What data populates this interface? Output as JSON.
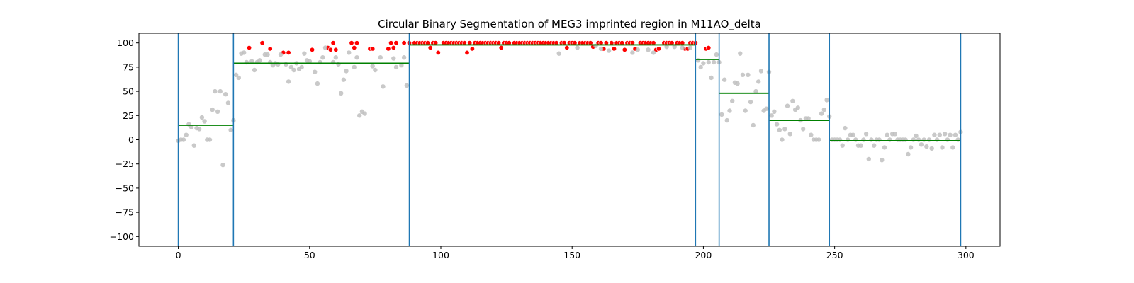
{
  "chart_data": {
    "type": "scatter",
    "title": "Circular Binary Segmentation of MEG3 imprinted region in M11AO_delta",
    "xlabel": "",
    "ylabel": "",
    "xlim": [
      -15,
      313
    ],
    "ylim": [
      -110,
      110
    ],
    "x_ticks": [
      0,
      50,
      100,
      150,
      200,
      250,
      300
    ],
    "y_ticks": [
      100,
      75,
      50,
      25,
      0,
      -25,
      -50,
      -75,
      -100
    ],
    "grid": false,
    "legend": "none",
    "colors": {
      "point": "#c0c0c0",
      "highlight": "#ff0000",
      "segment": "#008000",
      "breakpoint": "#1f77b4"
    },
    "breakpoints": [
      0,
      21,
      88,
      197,
      206,
      225,
      248,
      298
    ],
    "segments": [
      {
        "x_start": 0,
        "x_end": 21,
        "mean": 15
      },
      {
        "x_start": 21,
        "x_end": 88,
        "mean": 79
      },
      {
        "x_start": 88,
        "x_end": 197,
        "mean": 98
      },
      {
        "x_start": 197,
        "x_end": 206,
        "mean": 83
      },
      {
        "x_start": 206,
        "x_end": 225,
        "mean": 48
      },
      {
        "x_start": 225,
        "x_end": 248,
        "mean": 20
      },
      {
        "x_start": 248,
        "x_end": 298,
        "mean": -1
      }
    ],
    "series": [
      {
        "name": "",
        "points": [
          [
            0,
            -1
          ],
          [
            1,
            0
          ],
          [
            2,
            0
          ],
          [
            3,
            5
          ],
          [
            4,
            16
          ],
          [
            5,
            13
          ],
          [
            6,
            -6
          ],
          [
            7,
            12
          ],
          [
            8,
            11
          ],
          [
            9,
            23
          ],
          [
            10,
            19
          ],
          [
            11,
            0
          ],
          [
            12,
            0
          ],
          [
            13,
            31
          ],
          [
            14,
            50
          ],
          [
            15,
            29
          ],
          [
            16,
            50
          ],
          [
            17,
            -26
          ],
          [
            18,
            47
          ],
          [
            19,
            38
          ],
          [
            20,
            10
          ],
          [
            21,
            20
          ],
          [
            22,
            67
          ],
          [
            23,
            64
          ],
          [
            24,
            89
          ],
          [
            25,
            90
          ],
          [
            26,
            80
          ],
          [
            28,
            81
          ],
          [
            29,
            72
          ],
          [
            30,
            80
          ],
          [
            31,
            82
          ],
          [
            33,
            88
          ],
          [
            34,
            88
          ],
          [
            35,
            80
          ],
          [
            36,
            77
          ],
          [
            37,
            79
          ],
          [
            38,
            78
          ],
          [
            39,
            88
          ],
          [
            41,
            78
          ],
          [
            42,
            60
          ],
          [
            43,
            75
          ],
          [
            44,
            72
          ],
          [
            45,
            79
          ],
          [
            46,
            73
          ],
          [
            47,
            75
          ],
          [
            48,
            89
          ],
          [
            49,
            82
          ],
          [
            50,
            81
          ],
          [
            52,
            70
          ],
          [
            53,
            58
          ],
          [
            54,
            80
          ],
          [
            55,
            85
          ],
          [
            56,
            95
          ],
          [
            59,
            80
          ],
          [
            60,
            85
          ],
          [
            61,
            78
          ],
          [
            62,
            48
          ],
          [
            63,
            62
          ],
          [
            64,
            71
          ],
          [
            65,
            90
          ],
          [
            67,
            75
          ],
          [
            68,
            85
          ],
          [
            69,
            25
          ],
          [
            70,
            29
          ],
          [
            71,
            27
          ],
          [
            74,
            76
          ],
          [
            75,
            72
          ],
          [
            77,
            85
          ],
          [
            78,
            55
          ],
          [
            82,
            84
          ],
          [
            83,
            75
          ],
          [
            85,
            77
          ],
          [
            86,
            85
          ],
          [
            87,
            56
          ],
          [
            145,
            89
          ],
          [
            152,
            95
          ],
          [
            159,
            97
          ],
          [
            161,
            94
          ],
          [
            164,
            92
          ],
          [
            173,
            90
          ],
          [
            175,
            93
          ],
          [
            179,
            93
          ],
          [
            181,
            90
          ],
          [
            186,
            96
          ],
          [
            189,
            96
          ],
          [
            192,
            95
          ],
          [
            195,
            95
          ],
          [
            198,
            82
          ],
          [
            199,
            75
          ],
          [
            200,
            79
          ],
          [
            202,
            80
          ],
          [
            203,
            64
          ],
          [
            204,
            80
          ],
          [
            205,
            88
          ],
          [
            206,
            80
          ],
          [
            207,
            26
          ],
          [
            208,
            62
          ],
          [
            209,
            20
          ],
          [
            210,
            30
          ],
          [
            211,
            40
          ],
          [
            212,
            59
          ],
          [
            213,
            58
          ],
          [
            214,
            89
          ],
          [
            215,
            67
          ],
          [
            216,
            30
          ],
          [
            217,
            67
          ],
          [
            218,
            39
          ],
          [
            219,
            15
          ],
          [
            220,
            50
          ],
          [
            221,
            60
          ],
          [
            222,
            71
          ],
          [
            223,
            30
          ],
          [
            224,
            32
          ],
          [
            225,
            70
          ],
          [
            226,
            25
          ],
          [
            227,
            29
          ],
          [
            228,
            16
          ],
          [
            229,
            10
          ],
          [
            230,
            0
          ],
          [
            231,
            11
          ],
          [
            232,
            35
          ],
          [
            233,
            6
          ],
          [
            234,
            40
          ],
          [
            235,
            31
          ],
          [
            236,
            33
          ],
          [
            237,
            20
          ],
          [
            238,
            11
          ],
          [
            239,
            22
          ],
          [
            240,
            22
          ],
          [
            241,
            5
          ],
          [
            242,
            0
          ],
          [
            243,
            0
          ],
          [
            244,
            0
          ],
          [
            245,
            27
          ],
          [
            246,
            31
          ],
          [
            247,
            41
          ],
          [
            248,
            24
          ],
          [
            249,
            0
          ],
          [
            250,
            0
          ],
          [
            251,
            0
          ],
          [
            252,
            0
          ],
          [
            253,
            -6
          ],
          [
            254,
            12
          ],
          [
            255,
            0
          ],
          [
            256,
            5
          ],
          [
            257,
            5
          ],
          [
            258,
            0
          ],
          [
            259,
            -6
          ],
          [
            260,
            -6
          ],
          [
            261,
            0
          ],
          [
            262,
            6
          ],
          [
            263,
            -20
          ],
          [
            264,
            0
          ],
          [
            265,
            -6
          ],
          [
            266,
            0
          ],
          [
            267,
            0
          ],
          [
            268,
            -21
          ],
          [
            269,
            -8
          ],
          [
            270,
            5
          ],
          [
            271,
            0
          ],
          [
            272,
            6
          ],
          [
            273,
            6
          ],
          [
            274,
            0
          ],
          [
            275,
            0
          ],
          [
            276,
            0
          ],
          [
            277,
            0
          ],
          [
            278,
            -15
          ],
          [
            279,
            -8
          ],
          [
            280,
            0
          ],
          [
            281,
            4
          ],
          [
            282,
            0
          ],
          [
            283,
            -5
          ],
          [
            284,
            0
          ],
          [
            285,
            -7
          ],
          [
            286,
            0
          ],
          [
            287,
            -9
          ],
          [
            288,
            5
          ],
          [
            289,
            0
          ],
          [
            290,
            5
          ],
          [
            291,
            -8
          ],
          [
            292,
            6
          ],
          [
            293,
            0
          ],
          [
            294,
            5
          ],
          [
            295,
            -8
          ],
          [
            296,
            5
          ],
          [
            297,
            0
          ],
          [
            298,
            8
          ]
        ]
      },
      {
        "name": "",
        "highlight": true,
        "points": [
          [
            27,
            95
          ],
          [
            32,
            100
          ],
          [
            35,
            94
          ],
          [
            40,
            90
          ],
          [
            42,
            90
          ],
          [
            51,
            93
          ],
          [
            57,
            95
          ],
          [
            58,
            93
          ],
          [
            59,
            100
          ],
          [
            60,
            93
          ],
          [
            66,
            100
          ],
          [
            67,
            95
          ],
          [
            68,
            100
          ],
          [
            73,
            94
          ],
          [
            74,
            94
          ],
          [
            80,
            94
          ],
          [
            81,
            100
          ],
          [
            82,
            95
          ],
          [
            83,
            100
          ],
          [
            86,
            100
          ],
          [
            88,
            100
          ],
          [
            90,
            100
          ],
          [
            91,
            100
          ],
          [
            92,
            100
          ],
          [
            93,
            100
          ],
          [
            94,
            100
          ],
          [
            95,
            100
          ],
          [
            96,
            95
          ],
          [
            97,
            100
          ],
          [
            98,
            100
          ],
          [
            99,
            90
          ],
          [
            101,
            100
          ],
          [
            102,
            100
          ],
          [
            103,
            100
          ],
          [
            104,
            100
          ],
          [
            105,
            100
          ],
          [
            106,
            100
          ],
          [
            107,
            100
          ],
          [
            108,
            100
          ],
          [
            109,
            100
          ],
          [
            110,
            90
          ],
          [
            111,
            100
          ],
          [
            112,
            94
          ],
          [
            113,
            100
          ],
          [
            114,
            100
          ],
          [
            115,
            100
          ],
          [
            116,
            100
          ],
          [
            117,
            100
          ],
          [
            118,
            100
          ],
          [
            119,
            100
          ],
          [
            120,
            100
          ],
          [
            121,
            100
          ],
          [
            122,
            100
          ],
          [
            123,
            95
          ],
          [
            124,
            100
          ],
          [
            125,
            100
          ],
          [
            126,
            100
          ],
          [
            128,
            100
          ],
          [
            129,
            100
          ],
          [
            130,
            100
          ],
          [
            131,
            100
          ],
          [
            132,
            100
          ],
          [
            133,
            100
          ],
          [
            134,
            100
          ],
          [
            135,
            100
          ],
          [
            136,
            100
          ],
          [
            137,
            100
          ],
          [
            138,
            100
          ],
          [
            139,
            100
          ],
          [
            140,
            100
          ],
          [
            141,
            100
          ],
          [
            142,
            100
          ],
          [
            143,
            100
          ],
          [
            144,
            100
          ],
          [
            146,
            100
          ],
          [
            147,
            100
          ],
          [
            148,
            95
          ],
          [
            149,
            100
          ],
          [
            150,
            100
          ],
          [
            151,
            100
          ],
          [
            153,
            100
          ],
          [
            154,
            100
          ],
          [
            155,
            100
          ],
          [
            156,
            100
          ],
          [
            157,
            100
          ],
          [
            158,
            96
          ],
          [
            160,
            100
          ],
          [
            161,
            100
          ],
          [
            162,
            94
          ],
          [
            163,
            100
          ],
          [
            165,
            100
          ],
          [
            166,
            94
          ],
          [
            167,
            100
          ],
          [
            168,
            100
          ],
          [
            169,
            100
          ],
          [
            170,
            93
          ],
          [
            171,
            100
          ],
          [
            172,
            100
          ],
          [
            173,
            100
          ],
          [
            174,
            94
          ],
          [
            176,
            100
          ],
          [
            177,
            100
          ],
          [
            178,
            100
          ],
          [
            179,
            100
          ],
          [
            180,
            100
          ],
          [
            181,
            100
          ],
          [
            182,
            93
          ],
          [
            183,
            94
          ],
          [
            185,
            100
          ],
          [
            186,
            100
          ],
          [
            187,
            100
          ],
          [
            188,
            100
          ],
          [
            190,
            100
          ],
          [
            191,
            100
          ],
          [
            192,
            100
          ],
          [
            193,
            94
          ],
          [
            194,
            94
          ],
          [
            195,
            100
          ],
          [
            196,
            100
          ],
          [
            197,
            100
          ],
          [
            201,
            94
          ],
          [
            202,
            95
          ]
        ]
      }
    ]
  }
}
